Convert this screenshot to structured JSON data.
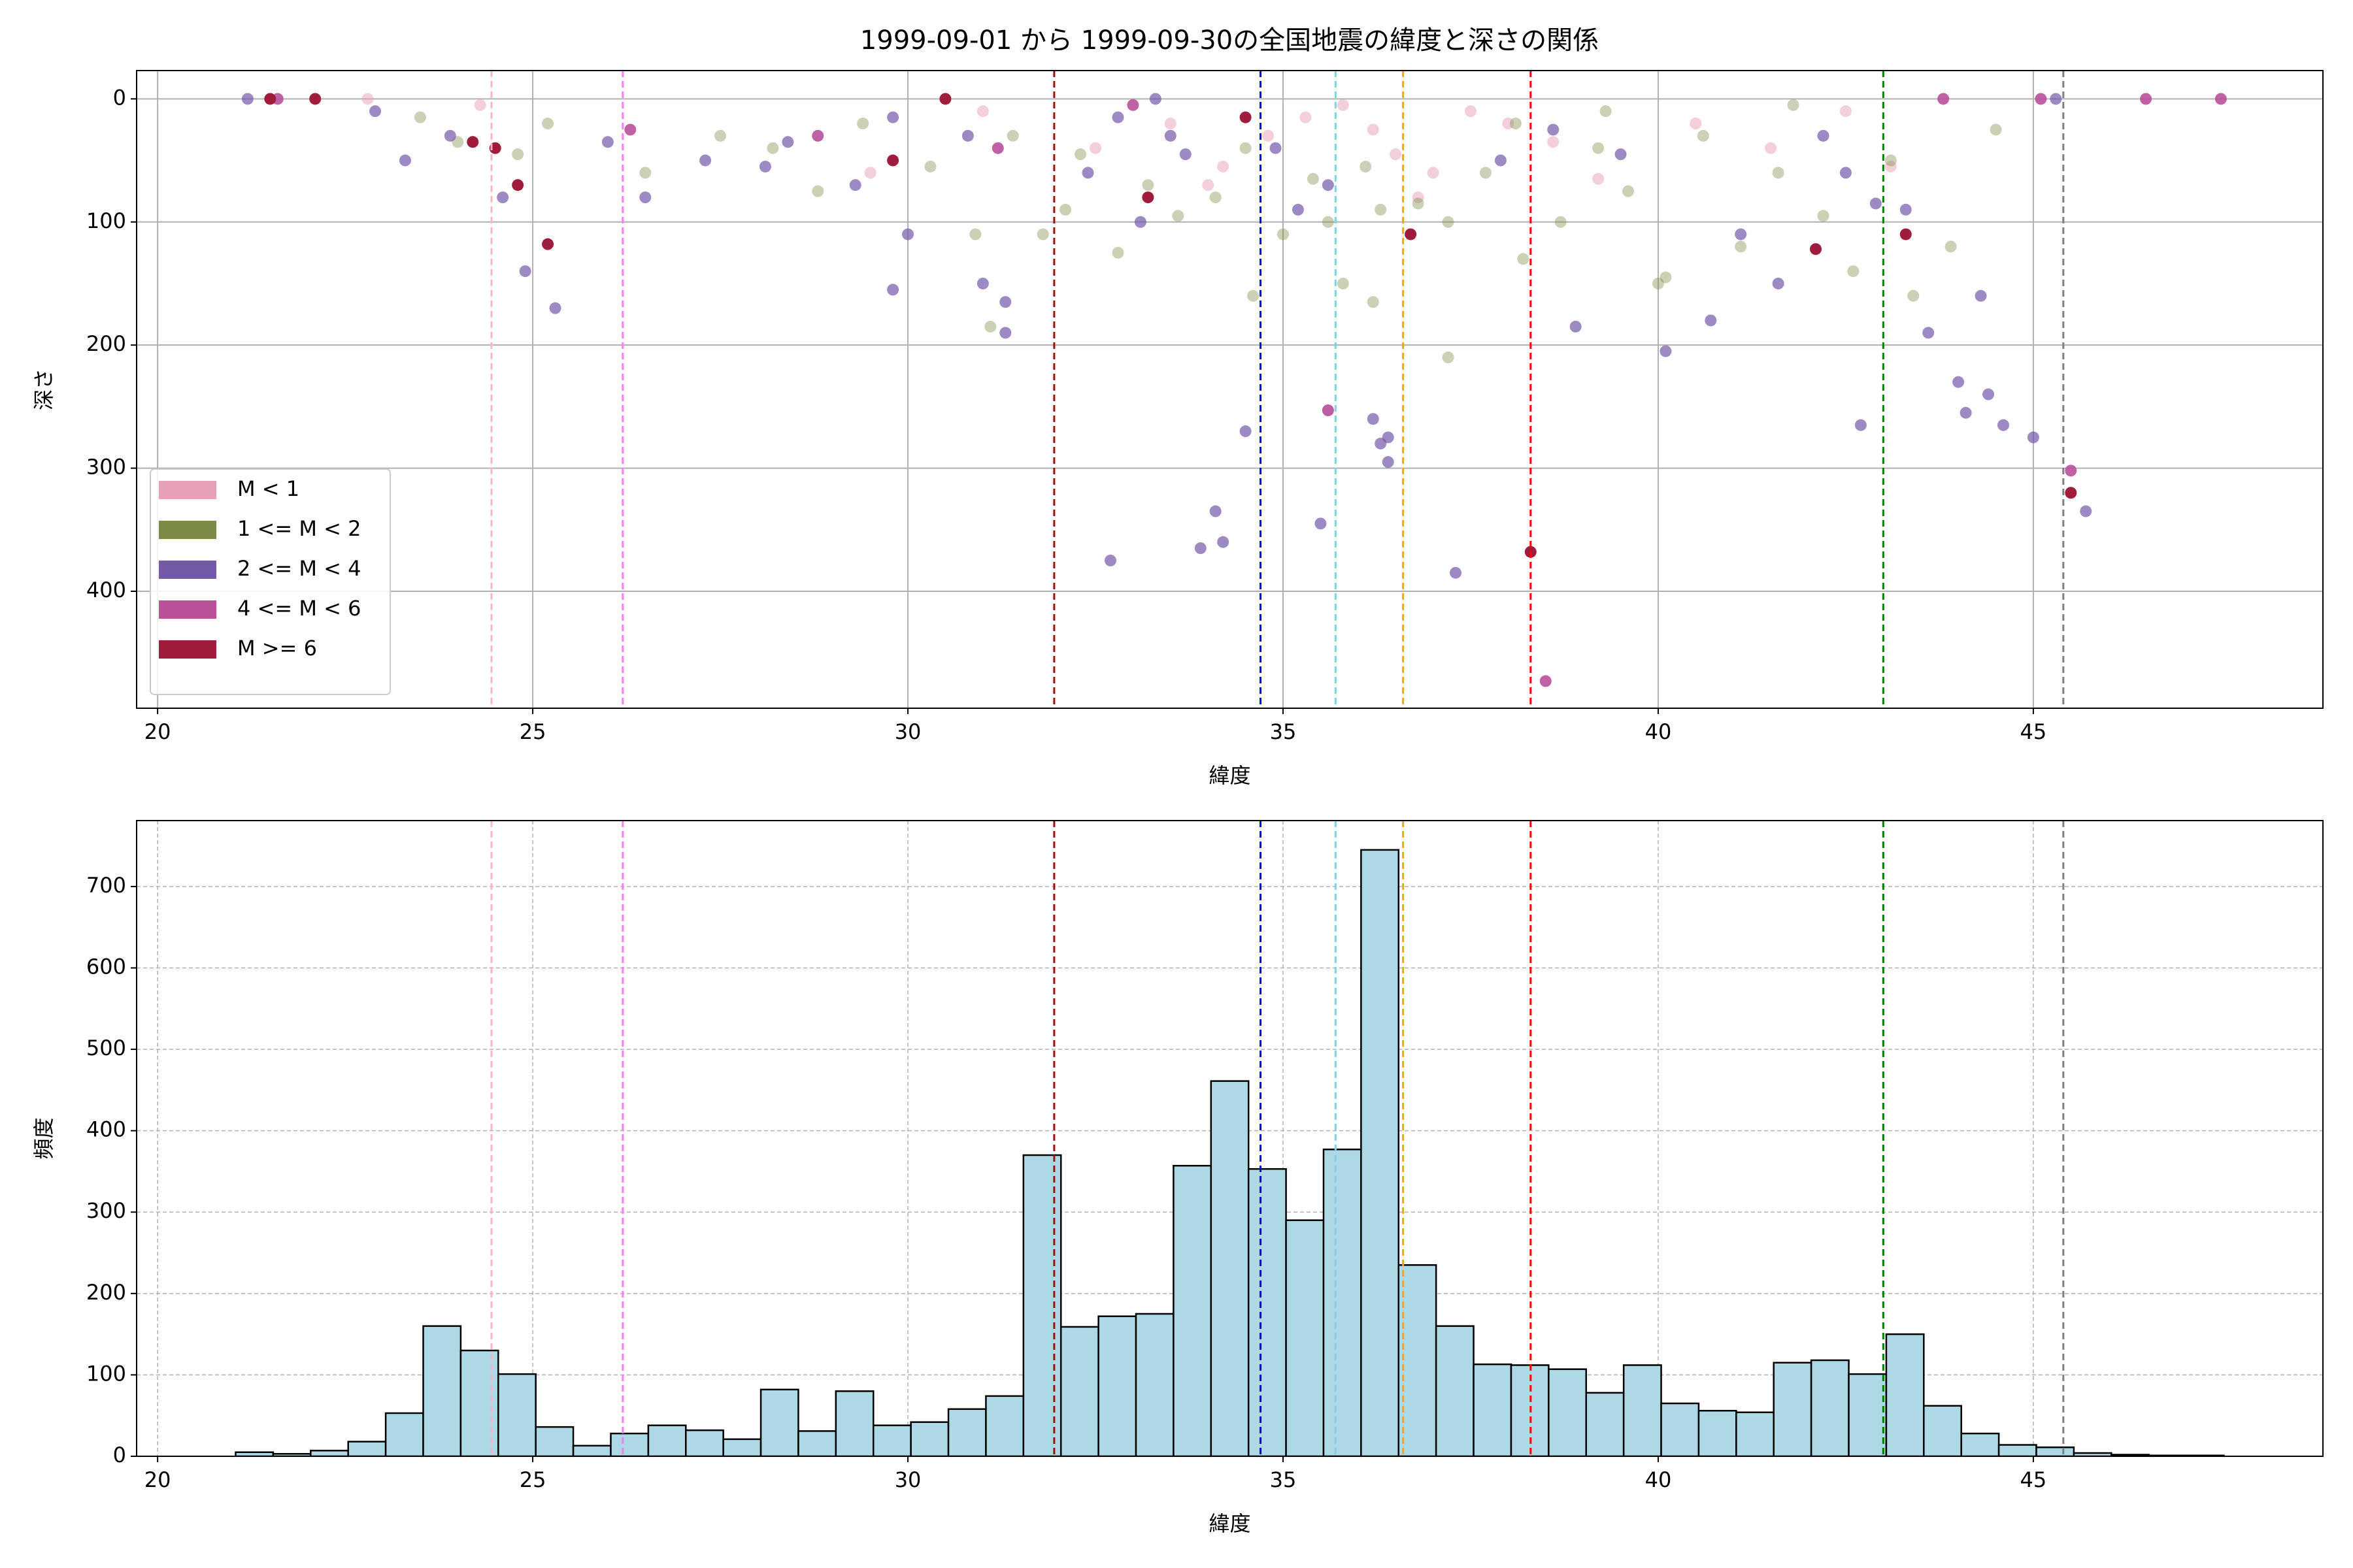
{
  "chart_data": [
    {
      "type": "scatter",
      "title": "1999-09-01 から 1999-09-30の全国地震の緯度と深さの関係",
      "x_label": "緯度",
      "y_label": "深さ",
      "xlim": [
        19.72,
        48.86
      ],
      "ylim": [
        -23,
        495
      ],
      "y_inverted": true,
      "xticks": [
        20,
        25,
        30,
        35,
        40,
        45
      ],
      "yticks": [
        0,
        100,
        200,
        300,
        400
      ],
      "grid": true,
      "legend_loc": "lower left",
      "series": [
        {
          "name": "M < 1",
          "color": "#e8a0b8",
          "opacity": 0.5,
          "x": [
            22.8,
            24.3,
            29.5,
            31,
            32.5,
            33.5,
            34.2,
            34.8,
            35.3,
            35.8,
            36.2,
            36.5,
            37,
            37.5,
            38,
            38.6,
            39.2,
            40.5,
            41.5,
            42.5,
            43.1,
            35.6,
            34,
            36.8
          ],
          "values": [
            0,
            5,
            60,
            10,
            40,
            20,
            55,
            30,
            15,
            5,
            25,
            45,
            60,
            10,
            20,
            35,
            65,
            20,
            40,
            10,
            55,
            253,
            70,
            80
          ]
        },
        {
          "name": "1 <= M < 2",
          "color": "#7b8b46",
          "opacity": 0.4,
          "x": [
            23.5,
            24,
            24.8,
            25.2,
            26.5,
            27.5,
            28.2,
            28.8,
            29.4,
            30.3,
            31.4,
            31.8,
            32.3,
            32.8,
            33.2,
            33.6,
            34.1,
            34.5,
            35,
            35.4,
            35.8,
            36.3,
            36.8,
            37.2,
            37.7,
            38.2,
            38.7,
            39.2,
            39.6,
            40.1,
            40.6,
            41.1,
            41.6,
            42.2,
            42.6,
            43.1,
            43.4,
            43.9,
            31.1,
            32.1,
            34.6,
            36.1,
            37.2,
            38.1,
            39.3,
            40,
            35.6,
            36.2,
            41.8,
            44.5,
            30.9
          ],
          "values": [
            15,
            35,
            45,
            20,
            60,
            30,
            40,
            75,
            20,
            55,
            30,
            110,
            45,
            125,
            70,
            95,
            80,
            40,
            110,
            65,
            150,
            90,
            85,
            210,
            60,
            130,
            100,
            40,
            75,
            145,
            30,
            120,
            60,
            95,
            140,
            50,
            160,
            120,
            185,
            90,
            160,
            55,
            100,
            20,
            10,
            150,
            100,
            165,
            5,
            25,
            110
          ]
        },
        {
          "name": "2 <= M < 4",
          "color": "#7359a8",
          "opacity": 0.7,
          "x": [
            21.2,
            22.9,
            23.3,
            23.9,
            24.6,
            24.9,
            25.3,
            26,
            26.5,
            27.3,
            28.1,
            28.4,
            29.3,
            29.8,
            30,
            30.8,
            31,
            31.3,
            32.4,
            32.8,
            33.1,
            33.5,
            33.7,
            34.2,
            34.5,
            34.9,
            35.2,
            35.6,
            36.2,
            36.4,
            37.3,
            37.9,
            38.6,
            38.9,
            39.5,
            40.1,
            40.7,
            41.1,
            41.6,
            42.2,
            42.5,
            42.9,
            43.3,
            43.6,
            44,
            44.3,
            44.6,
            45,
            45.3,
            45.7,
            44.1,
            44.4,
            42.7,
            34.1,
            35.5,
            36.3,
            33.9,
            36.4,
            33.3,
            29.8,
            31.3,
            32.7
          ],
          "values": [
            0,
            10,
            50,
            30,
            80,
            140,
            170,
            35,
            80,
            50,
            55,
            35,
            70,
            15,
            110,
            30,
            150,
            190,
            60,
            15,
            100,
            30,
            45,
            360,
            270,
            40,
            90,
            70,
            260,
            275,
            385,
            50,
            25,
            185,
            45,
            205,
            180,
            110,
            150,
            30,
            60,
            85,
            90,
            190,
            230,
            160,
            265,
            275,
            0,
            335,
            255,
            240,
            265,
            335,
            345,
            280,
            365,
            295,
            0,
            155,
            165,
            375
          ]
        },
        {
          "name": "4 <= M < 6",
          "color": "#b8509a",
          "opacity": 0.9,
          "x": [
            21.6,
            26.3,
            28.8,
            31.2,
            33,
            35.6,
            38.5,
            45.1,
            45.5,
            46.5,
            47.5,
            43.8
          ],
          "values": [
            0,
            25,
            30,
            40,
            5,
            253,
            473,
            0,
            302,
            0,
            0,
            0
          ]
        },
        {
          "name": "M >= 6",
          "color": "#a01c3c",
          "opacity": 1,
          "x": [
            21.5,
            22.1,
            24.2,
            24.5,
            24.8,
            25.2,
            29.8,
            33.2,
            36.7,
            38.3,
            42.1,
            43.3,
            45.5,
            30.5,
            34.5
          ],
          "values": [
            0,
            0,
            35,
            40,
            70,
            118,
            50,
            80,
            110,
            368,
            122,
            110,
            320,
            0,
            15
          ]
        }
      ],
      "reference_lines": [
        {
          "x": 24.45,
          "color": "#ffb6c1"
        },
        {
          "x": 26.2,
          "color": "#ee82ee"
        },
        {
          "x": 31.95,
          "color": "#a01010"
        },
        {
          "x": 34.7,
          "color": "#0000ff"
        },
        {
          "x": 35.7,
          "color": "#87ceeb"
        },
        {
          "x": 36.6,
          "color": "#ffa500"
        },
        {
          "x": 38.3,
          "color": "#ff0000"
        },
        {
          "x": 43.0,
          "color": "#008000"
        },
        {
          "x": 45.4,
          "color": "#808080"
        }
      ]
    },
    {
      "type": "histogram",
      "x_label": "緯度",
      "y_label": "頻度",
      "xlim": [
        19.72,
        48.86
      ],
      "ylim": [
        0,
        781
      ],
      "xticks": [
        20,
        25,
        30,
        35,
        40,
        45
      ],
      "yticks": [
        0,
        100,
        200,
        300,
        400,
        500,
        600,
        700
      ],
      "grid": "dashed",
      "color": "#add8e6",
      "edgecolor": "#000000",
      "bins": [
        21.04,
        21.54,
        22.04,
        22.54,
        23.04,
        23.54,
        24.04,
        24.54,
        25.04,
        25.54,
        26.04,
        26.54,
        27.04,
        27.54,
        28.04,
        28.54,
        29.04,
        29.54,
        30.04,
        30.54,
        31.04,
        31.54,
        32.04,
        32.54,
        33.04,
        33.54,
        34.04,
        34.54,
        35.04,
        35.54,
        36.04,
        36.54,
        37.04,
        37.54,
        38.04,
        38.54,
        39.04,
        39.54,
        40.04,
        40.54,
        41.04,
        41.54,
        42.04,
        42.54,
        43.04,
        43.54,
        44.04,
        44.54,
        45.04,
        45.54,
        46.04,
        46.54,
        47.04,
        47.54
      ],
      "values": [
        5,
        3,
        7,
        18,
        53,
        160,
        130,
        101,
        36,
        13,
        28,
        38,
        32,
        21,
        82,
        31,
        80,
        38,
        42,
        58,
        74,
        370,
        159,
        172,
        175,
        357,
        461,
        353,
        290,
        377,
        745,
        235,
        160,
        113,
        112,
        107,
        78,
        112,
        65,
        56,
        54,
        115,
        118,
        101,
        150,
        62,
        28,
        14,
        11,
        4,
        2,
        1,
        1
      ],
      "reference_lines": [
        {
          "x": 24.45,
          "color": "#ffb6c1"
        },
        {
          "x": 26.2,
          "color": "#ee82ee"
        },
        {
          "x": 31.95,
          "color": "#a01010"
        },
        {
          "x": 34.7,
          "color": "#0000ff"
        },
        {
          "x": 35.7,
          "color": "#87ceeb"
        },
        {
          "x": 36.6,
          "color": "#ffa500"
        },
        {
          "x": 38.3,
          "color": "#ff0000"
        },
        {
          "x": 43.0,
          "color": "#008000"
        },
        {
          "x": 45.4,
          "color": "#808080"
        }
      ]
    }
  ]
}
